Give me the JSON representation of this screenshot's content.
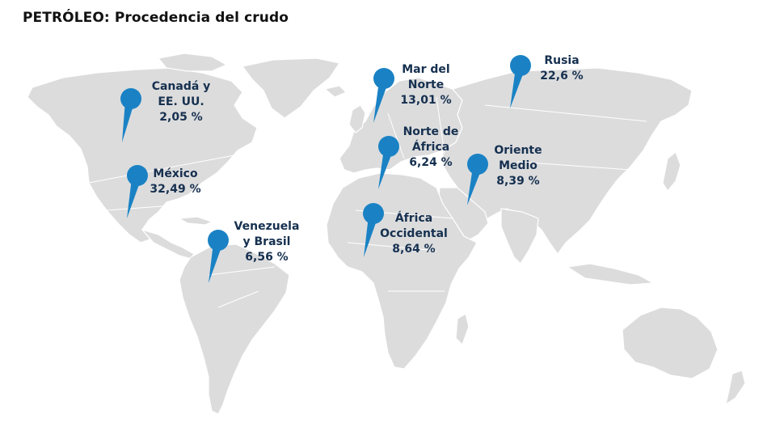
{
  "title": "PETRÓLEO: Procedencia del crudo",
  "colors": {
    "pin": "#1a82c4",
    "label": "#16304f",
    "land": "#dcdcdd"
  },
  "pins": [
    {
      "id": "canada-eeuu",
      "lines": [
        "Canadá y",
        "EE. UU.",
        "2,05 %"
      ],
      "share_pct": 2.05
    },
    {
      "id": "mexico",
      "lines": [
        "México",
        "32,49 %"
      ],
      "share_pct": 32.49
    },
    {
      "id": "venezuela-brasil",
      "lines": [
        "Venezuela",
        "y Brasil",
        "6,56 %"
      ],
      "share_pct": 6.56
    },
    {
      "id": "mar-del-norte",
      "lines": [
        "Mar del",
        "Norte",
        "13,01 %"
      ],
      "share_pct": 13.01
    },
    {
      "id": "norte-africa",
      "lines": [
        "Norte de",
        "África",
        "6,24 %"
      ],
      "share_pct": 6.24
    },
    {
      "id": "africa-occidental",
      "lines": [
        "África",
        "Occidental",
        "8,64 %"
      ],
      "share_pct": 8.64
    },
    {
      "id": "rusia",
      "lines": [
        "Rusia",
        "22,6 %"
      ],
      "share_pct": 22.6
    },
    {
      "id": "oriente-medio",
      "lines": [
        "Oriente",
        "Medio",
        "8,39 %"
      ],
      "share_pct": 8.39
    }
  ]
}
